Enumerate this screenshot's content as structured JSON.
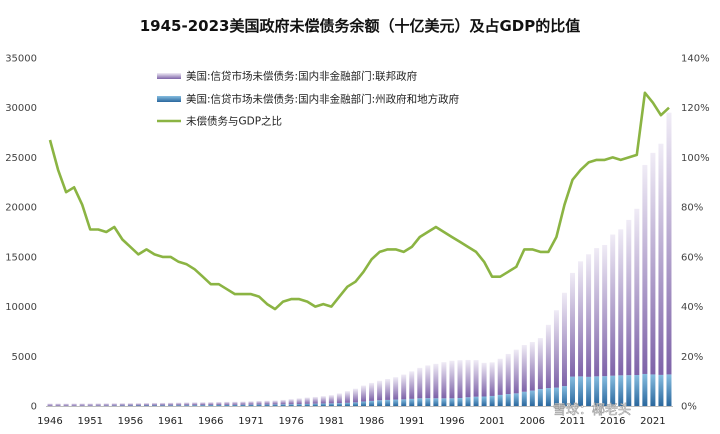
{
  "title": "1945-2023美国政府未偿债务余额（十亿美元）及占GDP的比值",
  "watermark": "雪球：椰老头",
  "chart_data": {
    "type": "bar",
    "title": "1945-2023美国政府未偿债务余额（十亿美元）及占GDP的比值",
    "xlabel": "",
    "ylabel": "",
    "ylim": [
      0,
      35000
    ],
    "y2lim": [
      0,
      1.4
    ],
    "yticks": [
      "0",
      "5000",
      "10000",
      "15000",
      "20000",
      "25000",
      "30000",
      "35000"
    ],
    "y2ticks": [
      "0%",
      "20%",
      "40%",
      "60%",
      "80%",
      "100%",
      "120%",
      "140%"
    ],
    "xticks": [
      "1946",
      "1951",
      "1956",
      "1961",
      "1966",
      "1971",
      "1976",
      "1981",
      "1986",
      "1991",
      "1996",
      "2001",
      "2006",
      "2011",
      "2016",
      "2021"
    ],
    "grid": false,
    "legend_position": "top-left",
    "colors": {
      "federal_top": "#e6e1ef",
      "federal_bottom": "#8d72b3",
      "state_top": "#7fb3d8",
      "state_bottom": "#2c6fa6",
      "ratio_line": "#8bb443"
    },
    "x": [
      1946,
      1947,
      1948,
      1949,
      1950,
      1951,
      1952,
      1953,
      1954,
      1955,
      1956,
      1957,
      1958,
      1959,
      1960,
      1961,
      1962,
      1963,
      1964,
      1965,
      1966,
      1967,
      1968,
      1969,
      1970,
      1971,
      1972,
      1973,
      1974,
      1975,
      1976,
      1977,
      1978,
      1979,
      1980,
      1981,
      1982,
      1983,
      1984,
      1985,
      1986,
      1987,
      1988,
      1989,
      1990,
      1991,
      1992,
      1993,
      1994,
      1995,
      1996,
      1997,
      1998,
      1999,
      2000,
      2001,
      2002,
      2003,
      2004,
      2005,
      2006,
      2007,
      2008,
      2009,
      2010,
      2011,
      2012,
      2013,
      2014,
      2015,
      2016,
      2017,
      2018,
      2019,
      2020,
      2021,
      2022,
      2023
    ],
    "series": [
      {
        "name": "美国:信贷市场未偿债务:国内非金融部门:联邦政府",
        "values": [
          230,
          228,
          222,
          226,
          226,
          223,
          229,
          232,
          236,
          238,
          236,
          235,
          242,
          252,
          254,
          262,
          269,
          278,
          285,
          289,
          292,
          301,
          314,
          314,
          323,
          344,
          366,
          381,
          388,
          442,
          506,
          574,
          636,
          678,
          738,
          827,
          976,
          1175,
          1376,
          1600,
          1811,
          1960,
          2104,
          2251,
          2497,
          2765,
          3062,
          3294,
          3465,
          3638,
          3782,
          3800,
          3752,
          3681,
          3385,
          3379,
          3637,
          4033,
          4395,
          4702,
          4885,
          5123,
          6362,
          7781,
          9386,
          10428,
          11570,
          12329,
          12900,
          13192,
          14199,
          14684,
          15619,
          16719,
          21019,
          22284,
          23252,
          26324
        ],
        "color": "#a08bc2"
      },
      {
        "name": "美国:信贷市场未偿债务:国内非金融部门:州政府和地方政府",
        "values": [
          16,
          18,
          20,
          22,
          24,
          26,
          29,
          32,
          36,
          41,
          45,
          49,
          54,
          58,
          64,
          69,
          74,
          79,
          85,
          91,
          97,
          103,
          110,
          117,
          124,
          134,
          144,
          153,
          163,
          173,
          184,
          195,
          216,
          236,
          256,
          266,
          289,
          322,
          364,
          454,
          512,
          578,
          612,
          646,
          668,
          719,
          774,
          790,
          775,
          771,
          772,
          804,
          878,
          934,
          955,
          1011,
          1114,
          1200,
          1272,
          1433,
          1552,
          1709,
          1804,
          1850,
          2002,
          2959,
          2981,
          2930,
          2983,
          3002,
          3047,
          3083,
          3099,
          3116,
          3222,
          3174,
          3127,
          3177
        ],
        "color": "#3d7db5"
      },
      {
        "name": "未偿债务与GDP之比",
        "values": [
          1.07,
          0.95,
          0.86,
          0.88,
          0.81,
          0.71,
          0.71,
          0.7,
          0.72,
          0.67,
          0.64,
          0.61,
          0.63,
          0.61,
          0.6,
          0.6,
          0.58,
          0.57,
          0.55,
          0.52,
          0.49,
          0.49,
          0.47,
          0.45,
          0.45,
          0.45,
          0.44,
          0.41,
          0.39,
          0.42,
          0.43,
          0.43,
          0.42,
          0.4,
          0.41,
          0.4,
          0.44,
          0.48,
          0.5,
          0.54,
          0.59,
          0.62,
          0.63,
          0.63,
          0.62,
          0.64,
          0.68,
          0.7,
          0.72,
          0.7,
          0.68,
          0.66,
          0.64,
          0.62,
          0.58,
          0.52,
          0.52,
          0.54,
          0.56,
          0.63,
          0.63,
          0.62,
          0.62,
          0.68,
          0.81,
          0.91,
          0.95,
          0.98,
          0.99,
          0.99,
          1.0,
          0.99,
          1.0,
          1.01,
          1.26,
          1.22,
          1.17,
          1.2
        ],
        "color": "#8bb443",
        "axis": "right"
      }
    ]
  }
}
